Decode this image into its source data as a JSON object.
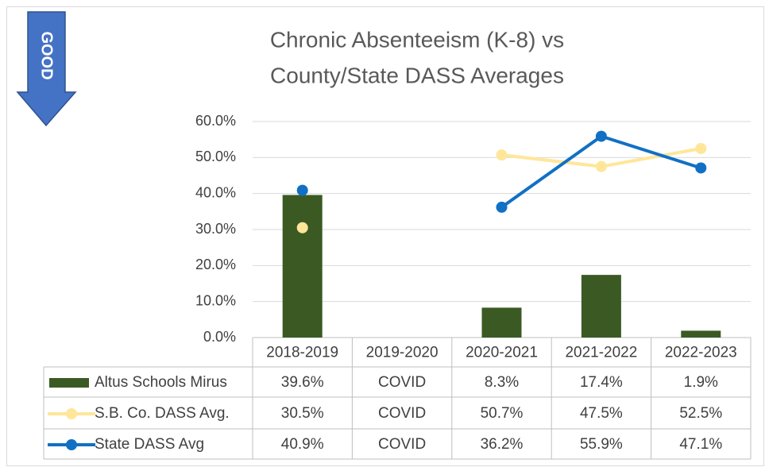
{
  "chart_data": {
    "type": "bar_line",
    "title": [
      "Chronic Absenteeism (K-8) vs",
      "County/State DASS Averages"
    ],
    "annotation": "GOOD",
    "categories": [
      "2018-2019",
      "2019-2020",
      "2020-2021",
      "2021-2022",
      "2022-2023"
    ],
    "series": [
      {
        "name": "Altus Schools Mirus",
        "type": "bar",
        "color": "#3b5a23",
        "values": [
          39.6,
          null,
          8.3,
          17.4,
          1.9
        ],
        "value_labels": [
          "39.6%",
          "COVID",
          "8.3%",
          "17.4%",
          "1.9%"
        ]
      },
      {
        "name": "S.B. Co. DASS Avg.",
        "type": "line",
        "color": "#ffe699",
        "values": [
          30.5,
          null,
          50.7,
          47.5,
          52.5
        ],
        "value_labels": [
          "30.5%",
          "COVID",
          "50.7%",
          "47.5%",
          "52.5%"
        ]
      },
      {
        "name": "State DASS Avg",
        "type": "line",
        "color": "#1170c4",
        "values": [
          40.9,
          null,
          36.2,
          55.9,
          47.1
        ],
        "value_labels": [
          "40.9%",
          "COVID",
          "36.2%",
          "55.9%",
          "47.1%"
        ]
      }
    ],
    "ylim": [
      0,
      60
    ],
    "yticks": [
      {
        "value": 0,
        "label": "0.0%"
      },
      {
        "value": 10,
        "label": "10.0%"
      },
      {
        "value": 20,
        "label": "20.0%"
      },
      {
        "value": 30,
        "label": "30.0%"
      },
      {
        "value": 40,
        "label": "40.0%"
      },
      {
        "value": 50,
        "label": "50.0%"
      },
      {
        "value": 60,
        "label": "60.0%"
      }
    ],
    "grid": true
  }
}
